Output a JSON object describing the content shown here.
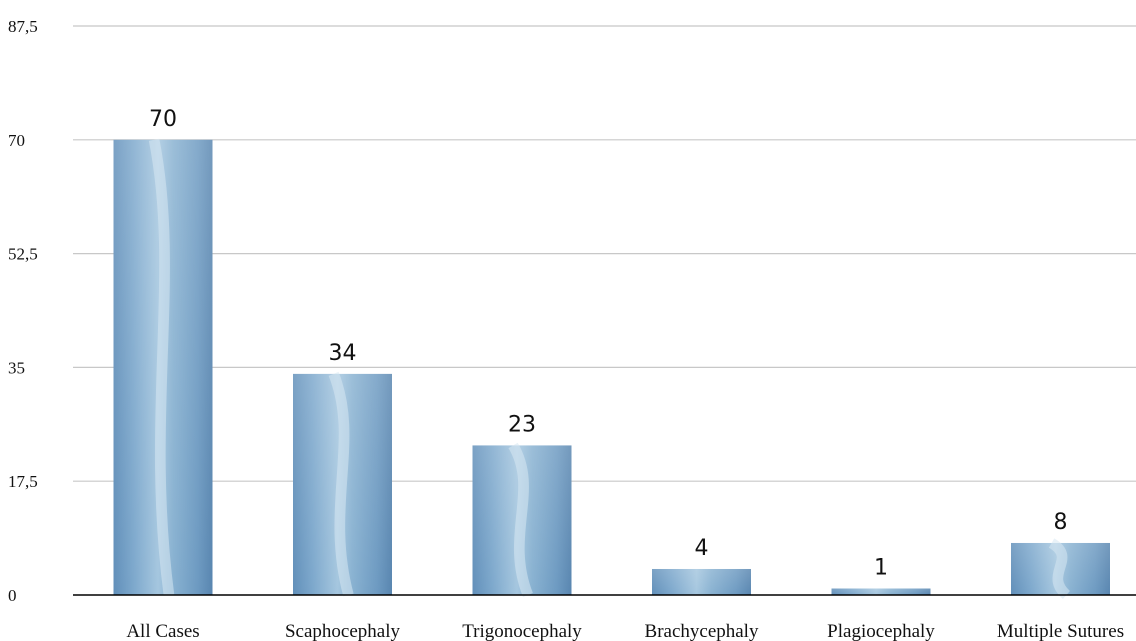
{
  "chart_data": {
    "type": "bar",
    "title": "",
    "xlabel": "",
    "ylabel": "",
    "categories": [
      "All Cases",
      "Scaphocephaly",
      "Trigonocephaly",
      "Brachycephaly",
      "Plagiocephaly",
      "Multiple Sutures"
    ],
    "values": [
      70,
      34,
      23,
      4,
      1,
      8
    ],
    "data_labels": [
      "70",
      "34",
      "23",
      "4",
      "1",
      "8"
    ],
    "ylim": [
      0,
      87.5
    ],
    "y_ticks": [
      0,
      17.5,
      35,
      52.5,
      70,
      87.5
    ],
    "y_tick_labels": [
      "0",
      "17,5",
      "35",
      "52,5",
      "70",
      "87,5"
    ],
    "grid": true,
    "legend": "none",
    "colors": {
      "bar": "#6f9bc2",
      "bar_light": "#a9c8df",
      "bar_dark": "#4f7ea8",
      "grid": "#c8c8c8",
      "axis": "#000000"
    }
  }
}
